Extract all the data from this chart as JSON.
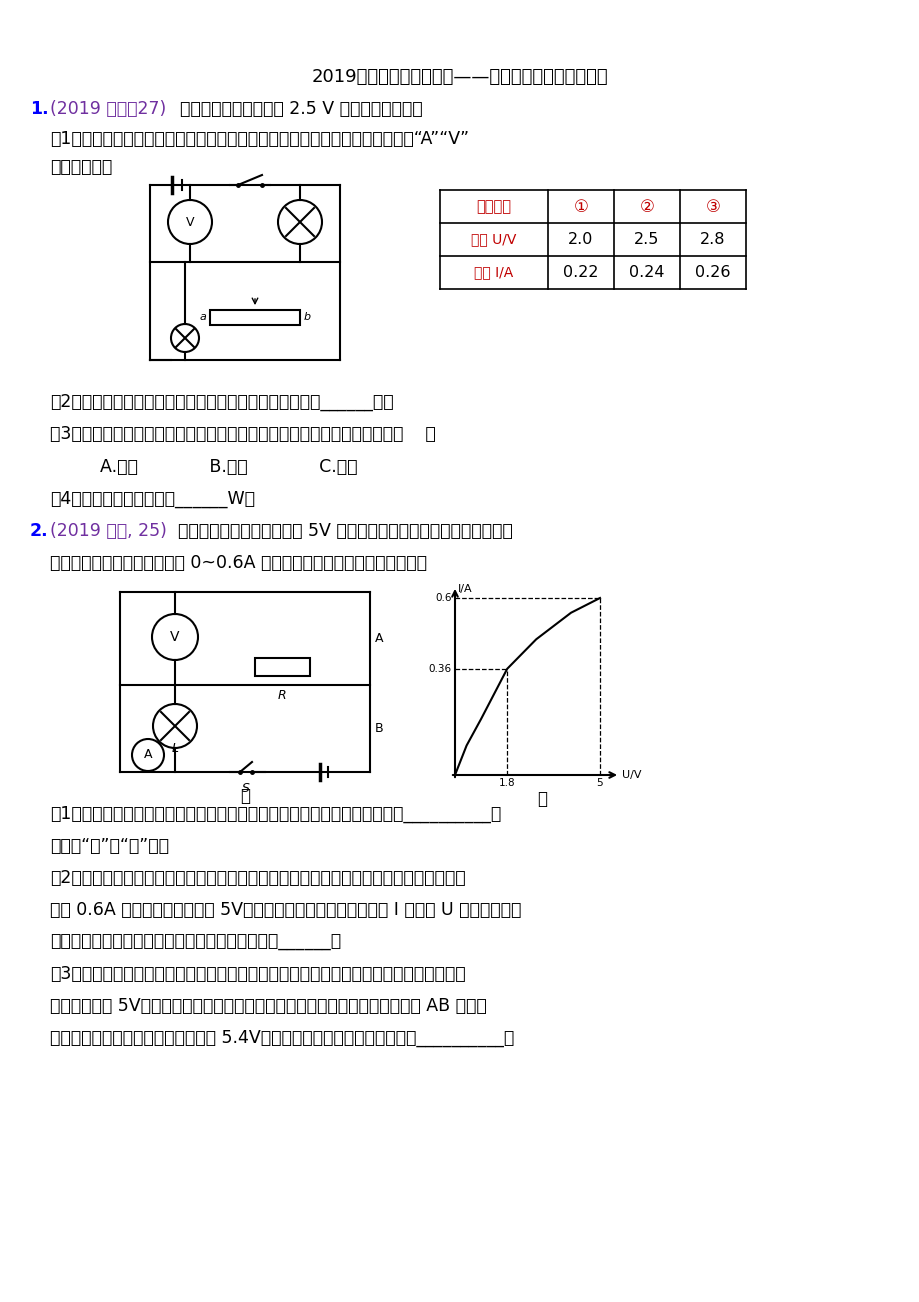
{
  "title": "2019年中考物理真题集锦——专题四十一：电功率实验",
  "q1_label": "1.",
  "q1_label_color": "#0000FF",
  "q1_source": "(2019 徐州，27)",
  "q1_source_color": "#7030A0",
  "q1_text": "小明要测量额定电压为 2.5 V 的小灯泡的功率．",
  "q1_1": "（1）如图所示，电路图中没有标明电流表、电压表，请在相应圆圈内填入字母“A”“V”",
  "q1_1b": "完成电路图．",
  "q1_2": "（2）连接电路时，闭合开关前，滑动变阻器的滑片应移到______端．",
  "q1_3": "（3）小明测量的数据如上表所示，三次测量比较，小灯泡亮度变化情况是（    ）",
  "q1_abc": "A.变亮             B.变暗             C.不变",
  "q1_4": "（4）小灯泡的额定功率为______W．",
  "table_headers": [
    "实验序号",
    "①",
    "②",
    "③"
  ],
  "table_row1_label": "电压 U/V",
  "table_row1_vals": [
    "2.0",
    "2.5",
    "2.8"
  ],
  "table_row2_label": "电流 I/A",
  "table_row2_vals": [
    "0.22",
    "0.24",
    "0.26"
  ],
  "q2_label": "2.",
  "q2_label_color": "#0000FF",
  "q2_source": "(2019 长春, 25)",
  "q2_source_color": "#7030A0",
  "q2_text": "科技小组要测量额定电压为 5V 的小灯泡的电功率，可用的器材有：一",
  "q2_text2": "个电压表和一个电流表（只有 0~0.6A 量程可用）．电源两端的电压恒定．",
  "q2_1": "（1）按如图甲所示电路图确连接电路．闭合开关前，将滑动变阻器滑片移到__________端",
  "q2_1b": "（选填“左”或“右”）．",
  "q2_2": "（2）闭合开关，记录电压表、电流表示数：调节滑动变阻器并记录多组数据．当电流表示",
  "q2_2b": "数为 0.6A 时，电压表示数低于 5V．根据数据绘制出小灯泡的电流 I 与电压 U 的关系图像如",
  "q2_2c": "图乙所示，由图像可知，灯丝电阻随温度的升高而______．",
  "q2_3": "（3）为测量小灯泡的额定功率，小组同学拆除电流表后再接通电路，调节滑动变阻器直至",
  "q2_3b": "电压表示数为 5V；保持滑动变阻器的滑片位置不变，断开开关，将电压表替换 AB 间导线",
  "q2_3c": "接入电路，闭合开关，电压表小数为 5.4V，则此时小灯泡亮度比正常发光时__________："
}
